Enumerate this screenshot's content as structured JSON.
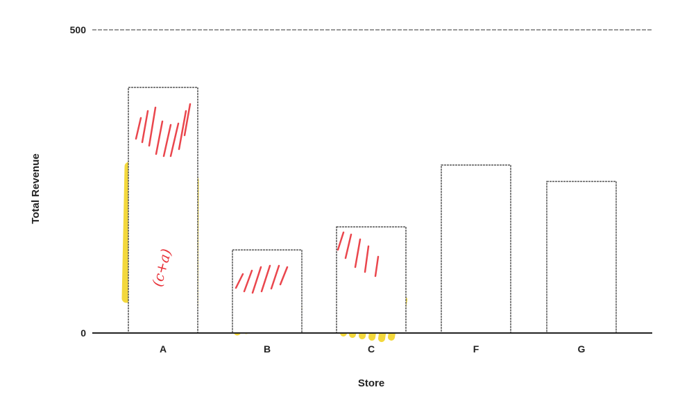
{
  "chart_data": {
    "type": "bar",
    "xlabel": "Store",
    "ylabel": "Total Revenue",
    "ylim": [
      0,
      500
    ],
    "yticks": [
      "0",
      "500"
    ],
    "categories": [
      "A",
      "B",
      "C",
      "F",
      "G"
    ],
    "values": [
      405,
      137,
      175,
      277,
      250
    ],
    "grid": false,
    "annotations": {
      "handwritten": [
        {
          "category": "A",
          "text": "(c+a)",
          "color": "#e8333a"
        }
      ]
    },
    "colors": {
      "bar_fill": "#ffffff",
      "bar_stroke": "#555555",
      "axis": "#222222",
      "scribble_red": "#e8333a",
      "scribble_yellow": "#f2d21b"
    }
  }
}
